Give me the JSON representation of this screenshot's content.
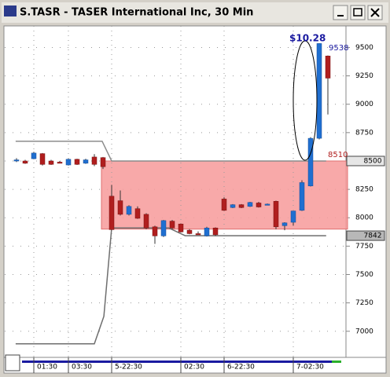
{
  "chart_data": {
    "type": "candlestick",
    "title": "S.TASR - TASER International Inc, 30 Min",
    "categories": [
      null,
      null,
      "01:30",
      null,
      null,
      null,
      "03:30",
      null,
      null,
      null,
      null,
      "5-22:30",
      null,
      null,
      null,
      null,
      null,
      null,
      null,
      "02:30",
      null,
      null,
      null,
      null,
      "6-22:30",
      null,
      null,
      null,
      null,
      null,
      null,
      null,
      "7-02:30",
      null,
      null,
      null,
      null
    ],
    "open": [
      8505,
      8500,
      8520,
      8565,
      8500,
      8490,
      8465,
      8515,
      8480,
      8535,
      8530,
      8190,
      8150,
      8030,
      8080,
      8030,
      7920,
      7840,
      7970,
      7945,
      7890,
      7860,
      7840,
      7910,
      8165,
      8090,
      8115,
      8100,
      8130,
      8120,
      8145,
      7930,
      7960,
      8065,
      8280,
      8700,
      9425
    ],
    "high": [
      8525,
      8510,
      8580,
      8570,
      8510,
      8500,
      8520,
      8520,
      8520,
      8560,
      8535,
      8290,
      8240,
      8110,
      8100,
      8040,
      7930,
      7980,
      7980,
      7950,
      7900,
      7880,
      7920,
      7915,
      8180,
      8120,
      8120,
      8140,
      8140,
      8125,
      8150,
      7960,
      8060,
      8330,
      8710,
      9538,
      9430
    ],
    "low": [
      8490,
      8475,
      8515,
      8460,
      8465,
      8480,
      8460,
      8465,
      8475,
      8455,
      8430,
      7895,
      8020,
      8020,
      7990,
      7900,
      7770,
      7830,
      7900,
      7870,
      7855,
      7850,
      7835,
      7840,
      8060,
      8085,
      8085,
      8095,
      8090,
      8115,
      7900,
      7890,
      7930,
      8060,
      8275,
      8690,
      8910
    ],
    "close": [
      8510,
      8480,
      8570,
      8470,
      8470,
      8485,
      8515,
      8470,
      8510,
      8470,
      8450,
      7895,
      8030,
      8100,
      7995,
      7910,
      7840,
      7975,
      7910,
      7875,
      7860,
      7855,
      7910,
      7850,
      8065,
      8115,
      8090,
      8135,
      8095,
      8120,
      7920,
      7955,
      8060,
      8310,
      8700,
      9535,
      9230
    ],
    "up_color": "#1f6fd0",
    "down_color": "#b01e1e",
    "ylim": [
      6770,
      9690
    ],
    "yticks": [
      7000,
      7250,
      7500,
      7750,
      8000,
      8250,
      8500,
      8750,
      9000,
      9250,
      9500
    ],
    "zone": [
      7900,
      8500
    ],
    "zone_color": "#f79a9a",
    "lines": [
      {
        "x": [
          -0.1,
          9.9,
          11,
          35.8
        ],
        "values": [
          8674,
          8674,
          8500,
          8500
        ],
        "color": "#8c8c8c"
      },
      {
        "x": [
          -0.1,
          9,
          10.1,
          11,
          17.6,
          19.5,
          35.8
        ],
        "values": [
          6889,
          6889,
          7132,
          7910,
          7910,
          7842,
          7842
        ],
        "color": "#6e6e6e"
      }
    ],
    "annotations": [
      "$10.28",
      "9538",
      "8510"
    ]
  }
}
